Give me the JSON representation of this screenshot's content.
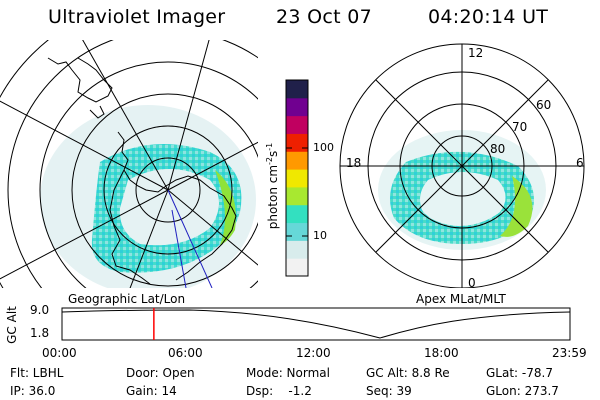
{
  "header": {
    "instrument": "Ultraviolet Imager",
    "date": "23 Oct 07",
    "time": "04:20:14 UT"
  },
  "left_map": {
    "label": "Geographic Lat/Lon"
  },
  "right_map": {
    "label": "Apex MLat/MLT",
    "mlt_labels": [
      "12",
      "18",
      "6",
      "0"
    ],
    "mlat_labels": [
      "60",
      "70",
      "80"
    ]
  },
  "colorbar": {
    "unit_label": "photon cm",
    "unit_sup1": "-2",
    "unit_mid": "s",
    "unit_sup2": "-1",
    "tick_labels": [
      "100",
      "10"
    ],
    "scale": "log",
    "colors": [
      "#f2f2f2",
      "#d8ecec",
      "#66d8d8",
      "#33e0c0",
      "#a8e830",
      "#f0e800",
      "#ff9900",
      "#ee2000",
      "#c00060",
      "#700090",
      "#20204a"
    ]
  },
  "timeline": {
    "axis_label": "GC Alt",
    "ymax_label": "9.0",
    "ymin_label": "1.8",
    "x_labels": [
      "00:00",
      "06:00",
      "12:00",
      "18:00",
      "23:59"
    ],
    "marker_color": "#ff0000",
    "marker_time_hours": 4.34
  },
  "status": {
    "flt": "Flt: LBHL",
    "ip": "IP: 36.0",
    "door": "Door: Open",
    "gain": "Gain: 14",
    "mode": "Mode: Normal",
    "dsp": "Dsp:    -1.2",
    "gc_alt": "GC Alt: 8.8 Re",
    "seq": "Seq: 39",
    "glat": "GLat: -78.7",
    "glon": "GLon: 273.7"
  }
}
